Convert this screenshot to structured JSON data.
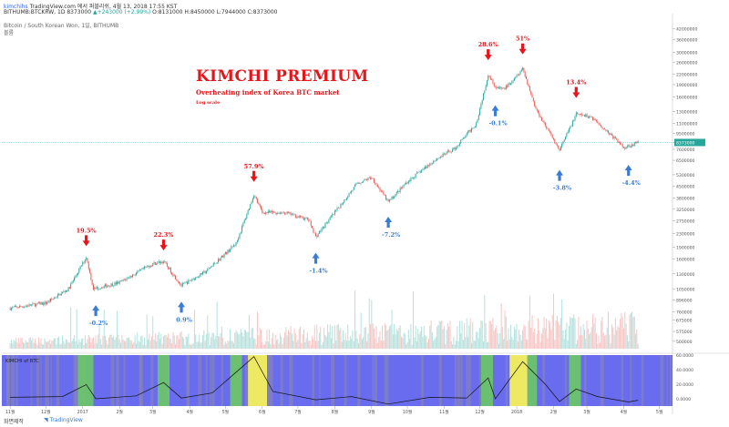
{
  "header": {
    "line1_user": "kimchihs",
    "line1_rest": " TradingView.com 에서 퍼블리쉬, 4월 13, 2018 17:55 KST",
    "line2": "BITHUMB:BTCKRW, 1D 8373000",
    "line2_change": "▲+243000 (+2.99%)",
    "line2_ohlc": "O:8131000 H:8450000 L:7944000 C:8373000",
    "line3": "Bitcoin / South Korean Won, 1일, BITHUMB",
    "line4": "볼륨"
  },
  "overlay": {
    "title": "KIMCHI PREMIUM",
    "subtitle": "Overheating index of Korea BTC market",
    "note": "Log scale"
  },
  "footer": {
    "left": "화면제작",
    "brand": "TradingView"
  },
  "colors": {
    "up": "#26a69a",
    "down": "#ef5350",
    "annotation_red": "#e8141a",
    "annotation_blue": "#3a7bd5",
    "indicator_bg": "#6a6cf0",
    "indicator_green": "#6cc46c",
    "indicator_yellow": "#f5f05a",
    "indicator_gray": "#8a8aa8",
    "current_price": "#26a69a"
  },
  "chart_data": {
    "type": "candlestick",
    "symbol": "BITHUMB:BTCKRW",
    "timeframe": "1D",
    "y_scale": "log",
    "ylim": [
      450000,
      50000000
    ],
    "y_ticks": [
      "42000000",
      "36000000",
      "30000000",
      "26000000",
      "22000000",
      "19000000",
      "16000000",
      "13000000",
      "11000000",
      "9500000",
      "8373000",
      "7600000",
      "6500000",
      "5300000",
      "4500000",
      "3800000",
      "3250000",
      "2750000",
      "2300000",
      "1900000",
      "1600000",
      "1300000",
      "1050000",
      "896000",
      "760000",
      "675000",
      "575000",
      "500000"
    ],
    "current_price": "8373000",
    "x_ticks": [
      "11월",
      "12월",
      "2017",
      "2월",
      "3월",
      "4월",
      "5월",
      "6월",
      "7월",
      "8월",
      "9월",
      "10월",
      "11월",
      "12월",
      "2018",
      "2월",
      "3월",
      "4월",
      "5월"
    ],
    "price_path": [
      {
        "x": "2016-11-01",
        "y": 800000
      },
      {
        "x": "2016-12-01",
        "y": 860000
      },
      {
        "x": "2016-12-20",
        "y": 1050000
      },
      {
        "x": "2017-01-04",
        "y": 1650000
      },
      {
        "x": "2017-01-10",
        "y": 1050000
      },
      {
        "x": "2017-02-01",
        "y": 1150000
      },
      {
        "x": "2017-03-01",
        "y": 1500000
      },
      {
        "x": "2017-03-10",
        "y": 1550000
      },
      {
        "x": "2017-03-25",
        "y": 1100000
      },
      {
        "x": "2017-04-15",
        "y": 1350000
      },
      {
        "x": "2017-05-10",
        "y": 2000000
      },
      {
        "x": "2017-05-25",
        "y": 4000000
      },
      {
        "x": "2017-06-01",
        "y": 3100000
      },
      {
        "x": "2017-06-20",
        "y": 3100000
      },
      {
        "x": "2017-07-10",
        "y": 2800000
      },
      {
        "x": "2017-07-16",
        "y": 2200000
      },
      {
        "x": "2017-08-01",
        "y": 3100000
      },
      {
        "x": "2017-08-20",
        "y": 4700000
      },
      {
        "x": "2017-09-01",
        "y": 5100000
      },
      {
        "x": "2017-09-15",
        "y": 3600000
      },
      {
        "x": "2017-10-01",
        "y": 4800000
      },
      {
        "x": "2017-10-25",
        "y": 6600000
      },
      {
        "x": "2017-11-10",
        "y": 7700000
      },
      {
        "x": "2017-11-28",
        "y": 11000000
      },
      {
        "x": "2017-12-08",
        "y": 22000000
      },
      {
        "x": "2017-12-15",
        "y": 18000000
      },
      {
        "x": "2017-12-22",
        "y": 18000000
      },
      {
        "x": "2018-01-06",
        "y": 24000000
      },
      {
        "x": "2018-01-17",
        "y": 13500000
      },
      {
        "x": "2018-02-06",
        "y": 7500000
      },
      {
        "x": "2018-02-20",
        "y": 12500000
      },
      {
        "x": "2018-03-05",
        "y": 12000000
      },
      {
        "x": "2018-03-20",
        "y": 9500000
      },
      {
        "x": "2018-04-01",
        "y": 7800000
      },
      {
        "x": "2018-04-13",
        "y": 8373000
      }
    ],
    "annotations": [
      {
        "label": "19.5%",
        "type": "peak",
        "date": "2017-01-04",
        "price": 1650000
      },
      {
        "label": "-0.2%",
        "type": "trough",
        "date": "2017-01-12",
        "price": 1000000
      },
      {
        "label": "22.3%",
        "type": "peak",
        "date": "2017-03-10",
        "price": 1550000
      },
      {
        "label": "0.9%",
        "type": "trough",
        "date": "2017-03-25",
        "price": 1050000
      },
      {
        "label": "57.9%",
        "type": "peak",
        "date": "2017-05-25",
        "price": 4100000
      },
      {
        "label": "-1.4%",
        "type": "trough",
        "date": "2017-07-16",
        "price": 2100000
      },
      {
        "label": "-7.2%",
        "type": "trough",
        "date": "2017-09-15",
        "price": 3500000
      },
      {
        "label": "28.6%",
        "type": "peak",
        "date": "2017-12-08",
        "price": 23000000
      },
      {
        "label": "-0.1%",
        "type": "trough",
        "date": "2017-12-14",
        "price": 17000000
      },
      {
        "label": "51%",
        "type": "peak",
        "date": "2018-01-06",
        "price": 25000000
      },
      {
        "label": "13.4%",
        "type": "peak",
        "date": "2018-02-20",
        "price": 13500000
      },
      {
        "label": "-3.8%",
        "type": "trough",
        "date": "2018-02-06",
        "price": 6800000
      },
      {
        "label": "-4.4%",
        "type": "trough",
        "date": "2018-04-05",
        "price": 7300000
      }
    ],
    "indicator": {
      "label": "KIMCHI of BTC",
      "y_ticks": [
        "60.0000",
        "40.0000",
        "20.0000",
        "0.0000"
      ],
      "ylim": [
        -10,
        60
      ],
      "series": [
        {
          "x": "2016-11-01",
          "y": 2
        },
        {
          "x": "2016-12-15",
          "y": 3
        },
        {
          "x": "2017-01-04",
          "y": 19.5
        },
        {
          "x": "2017-01-12",
          "y": 0
        },
        {
          "x": "2017-02-15",
          "y": 4
        },
        {
          "x": "2017-03-10",
          "y": 22.3
        },
        {
          "x": "2017-03-25",
          "y": 1
        },
        {
          "x": "2017-04-20",
          "y": 8
        },
        {
          "x": "2017-05-25",
          "y": 57.9
        },
        {
          "x": "2017-06-10",
          "y": 10
        },
        {
          "x": "2017-07-16",
          "y": -1.4
        },
        {
          "x": "2017-08-15",
          "y": 3
        },
        {
          "x": "2017-09-15",
          "y": -7.2
        },
        {
          "x": "2017-10-20",
          "y": 2
        },
        {
          "x": "2017-11-20",
          "y": 1
        },
        {
          "x": "2017-12-08",
          "y": 28.6
        },
        {
          "x": "2017-12-14",
          "y": 0
        },
        {
          "x": "2018-01-06",
          "y": 51
        },
        {
          "x": "2018-01-25",
          "y": 20
        },
        {
          "x": "2018-02-06",
          "y": -3.8
        },
        {
          "x": "2018-02-20",
          "y": 13.4
        },
        {
          "x": "2018-03-10",
          "y": 3
        },
        {
          "x": "2018-04-05",
          "y": -4.4
        },
        {
          "x": "2018-04-13",
          "y": -2
        }
      ],
      "highlight_zones": [
        {
          "start": "2016-12-28",
          "end": "2017-01-10",
          "level": "green"
        },
        {
          "start": "2017-03-05",
          "end": "2017-03-15",
          "level": "green"
        },
        {
          "start": "2017-05-05",
          "end": "2017-05-15",
          "level": "green"
        },
        {
          "start": "2017-05-20",
          "end": "2017-06-05",
          "level": "yellow"
        },
        {
          "start": "2017-12-02",
          "end": "2017-12-12",
          "level": "green"
        },
        {
          "start": "2017-12-26",
          "end": "2018-01-10",
          "level": "yellow"
        },
        {
          "start": "2018-01-10",
          "end": "2018-01-18",
          "level": "green"
        },
        {
          "start": "2018-02-14",
          "end": "2018-02-24",
          "level": "green"
        }
      ]
    }
  }
}
